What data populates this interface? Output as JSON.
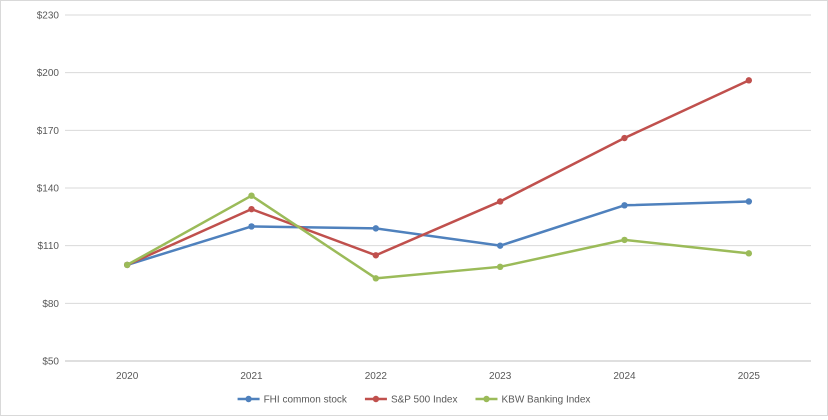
{
  "chart_data": {
    "type": "line",
    "title": "",
    "xlabel": "",
    "ylabel": "",
    "x": [
      "2020",
      "2021",
      "2022",
      "2023",
      "2024",
      "2025"
    ],
    "ylim": [
      50,
      230
    ],
    "yticks": [
      50,
      80,
      110,
      140,
      170,
      200,
      230
    ],
    "ytick_labels": [
      "$50",
      "$80",
      "$110",
      "$140",
      "$170",
      "$200",
      "$230"
    ],
    "grid": true,
    "legend_position": "bottom",
    "series": [
      {
        "name": "FHI common stock",
        "color": "#4F81BD",
        "values": [
          100,
          120,
          119,
          110,
          131,
          133
        ]
      },
      {
        "name": "S&P 500 Index",
        "color": "#C0504D",
        "values": [
          100,
          129,
          105,
          133,
          166,
          196
        ]
      },
      {
        "name": "KBW Banking Index",
        "color": "#9BBB59",
        "values": [
          100,
          136,
          93,
          99,
          113,
          106
        ]
      }
    ]
  }
}
